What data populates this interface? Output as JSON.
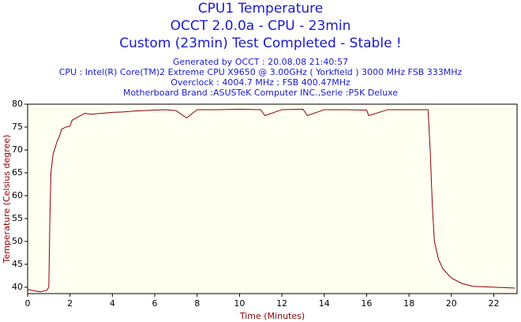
{
  "chart_data": {
    "type": "line",
    "title_lines": [
      "CPU1 Temperature",
      "OCCT 2.0.0a - CPU - 23min",
      "Custom (23min) Test Completed - Stable !"
    ],
    "info_lines": [
      "Generated by OCCT : 20.08.08 21:40:57",
      "CPU : Intel(R) Core(TM)2 Extreme CPU X9650 @ 3.00GHz ( Yorkfield ) 3000 MHz FSB 333MHz",
      "Overclock : 4004.7 MHz ; FSB 400.47MHz",
      "Motherboard Brand :ASUSTeK Computer INC.,Serie :P5K Deluxe"
    ],
    "x_label": "Time (Minutes)",
    "y_label": "Temperature (Celsius degree)",
    "x": [
      0,
      0.3,
      0.6,
      0.9,
      1.0,
      1.05,
      1.1,
      1.2,
      1.3,
      1.4,
      1.5,
      1.6,
      1.8,
      2.0,
      2.1,
      2.3,
      2.5,
      2.7,
      3,
      3.5,
      4,
      4.5,
      5,
      5.5,
      6,
      6.5,
      7,
      7.5,
      8,
      9,
      10,
      11,
      11.2,
      12,
      13,
      13.2,
      14,
      15,
      16,
      16.1,
      17,
      18,
      18.9,
      19.0,
      19.1,
      19.2,
      19.4,
      19.6,
      20,
      20.5,
      21,
      22,
      23
    ],
    "series": [
      {
        "name": "CPU1",
        "color": "#8b0000",
        "values": [
          39.5,
          39.2,
          39,
          39.3,
          40,
          55,
          65,
          69,
          70.5,
          72,
          73,
          74.5,
          75,
          75.2,
          76.5,
          77,
          77.5,
          78,
          77.8,
          78,
          78.2,
          78.3,
          78.5,
          78.6,
          78.7,
          78.8,
          78.6,
          77,
          78.8,
          78.8,
          78.9,
          78.8,
          77.5,
          78.8,
          78.9,
          77.5,
          78.8,
          78.8,
          78.7,
          77.5,
          78.8,
          78.8,
          78.8,
          70,
          58,
          50,
          46,
          44,
          42,
          40.8,
          40.2,
          40,
          39.8
        ]
      }
    ],
    "xlim": [
      0,
      23.1
    ],
    "ylim": [
      38.6,
      80
    ],
    "xticks": [
      0,
      2,
      4,
      6,
      8,
      10,
      12,
      14,
      16,
      18,
      20,
      22
    ],
    "yticks": [
      40,
      45,
      50,
      55,
      60,
      65,
      70,
      75,
      80
    ],
    "grid": false
  }
}
